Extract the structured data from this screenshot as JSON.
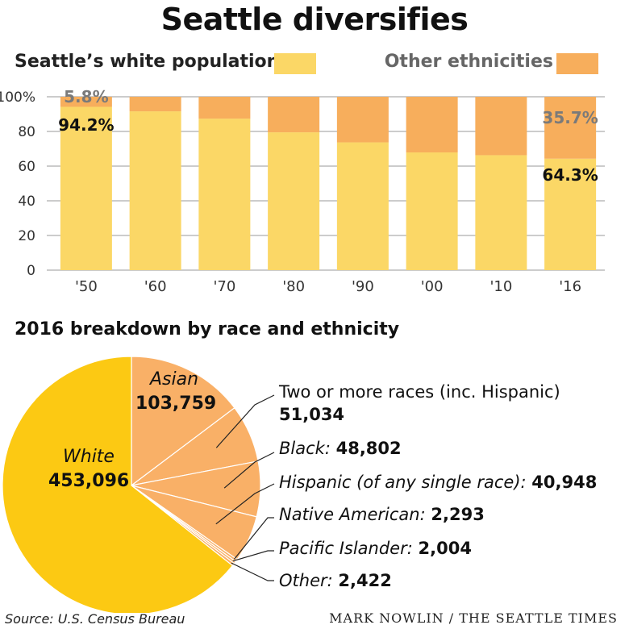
{
  "title": "Seattle diversifies",
  "colors": {
    "white": "#fbd766",
    "other": "#f7ae5c",
    "pie_white": "#fcc913",
    "pie_other": "#f9b067",
    "grid": "#9a9a9a"
  },
  "legend": {
    "white_label": "Seattle’s white population",
    "other_label": "Other ethnicities"
  },
  "chart_data": [
    {
      "type": "bar",
      "stacked": true,
      "categories": [
        "'50",
        "'60",
        "'70",
        "'80",
        "'90",
        "'00",
        "'10",
        "'16"
      ],
      "series": [
        {
          "name": "Seattle’s white population",
          "values": [
            94.2,
            91.6,
            87.4,
            79.5,
            73.7,
            67.9,
            66.3,
            64.3
          ]
        },
        {
          "name": "Other ethnicities",
          "values": [
            5.8,
            8.4,
            12.6,
            20.5,
            26.3,
            32.1,
            33.7,
            35.7
          ]
        }
      ],
      "ylim": [
        0,
        100
      ],
      "y_ticks": [
        "100%",
        "80",
        "60",
        "40",
        "20",
        "0"
      ],
      "annotations": [
        "5.8%",
        "94.2%",
        "35.7%",
        "64.3%"
      ]
    },
    {
      "type": "pie",
      "title": "2016 breakdown by race and ethnicity",
      "slices": [
        {
          "name": "Asian",
          "value": 103759,
          "value_text": "103,759"
        },
        {
          "name": "Two or more races (inc. Hispanic)",
          "value": 51034,
          "value_text": "51,034"
        },
        {
          "name": "Black:",
          "value": 48802,
          "value_text": "48,802"
        },
        {
          "name": "Hispanic (of any single race):",
          "value": 40948,
          "value_text": "40,948"
        },
        {
          "name": "Native American:",
          "value": 2293,
          "value_text": "2,293"
        },
        {
          "name": "Pacific Islander:",
          "value": 2004,
          "value_text": "2,004"
        },
        {
          "name": "Other:",
          "value": 2422,
          "value_text": "2,422"
        },
        {
          "name": "White",
          "value": 453096,
          "value_text": "453,096"
        }
      ]
    }
  ],
  "source": "Source: U.S. Census Bureau",
  "credit": "MARK NOWLIN / THE SEATTLE TIMES"
}
